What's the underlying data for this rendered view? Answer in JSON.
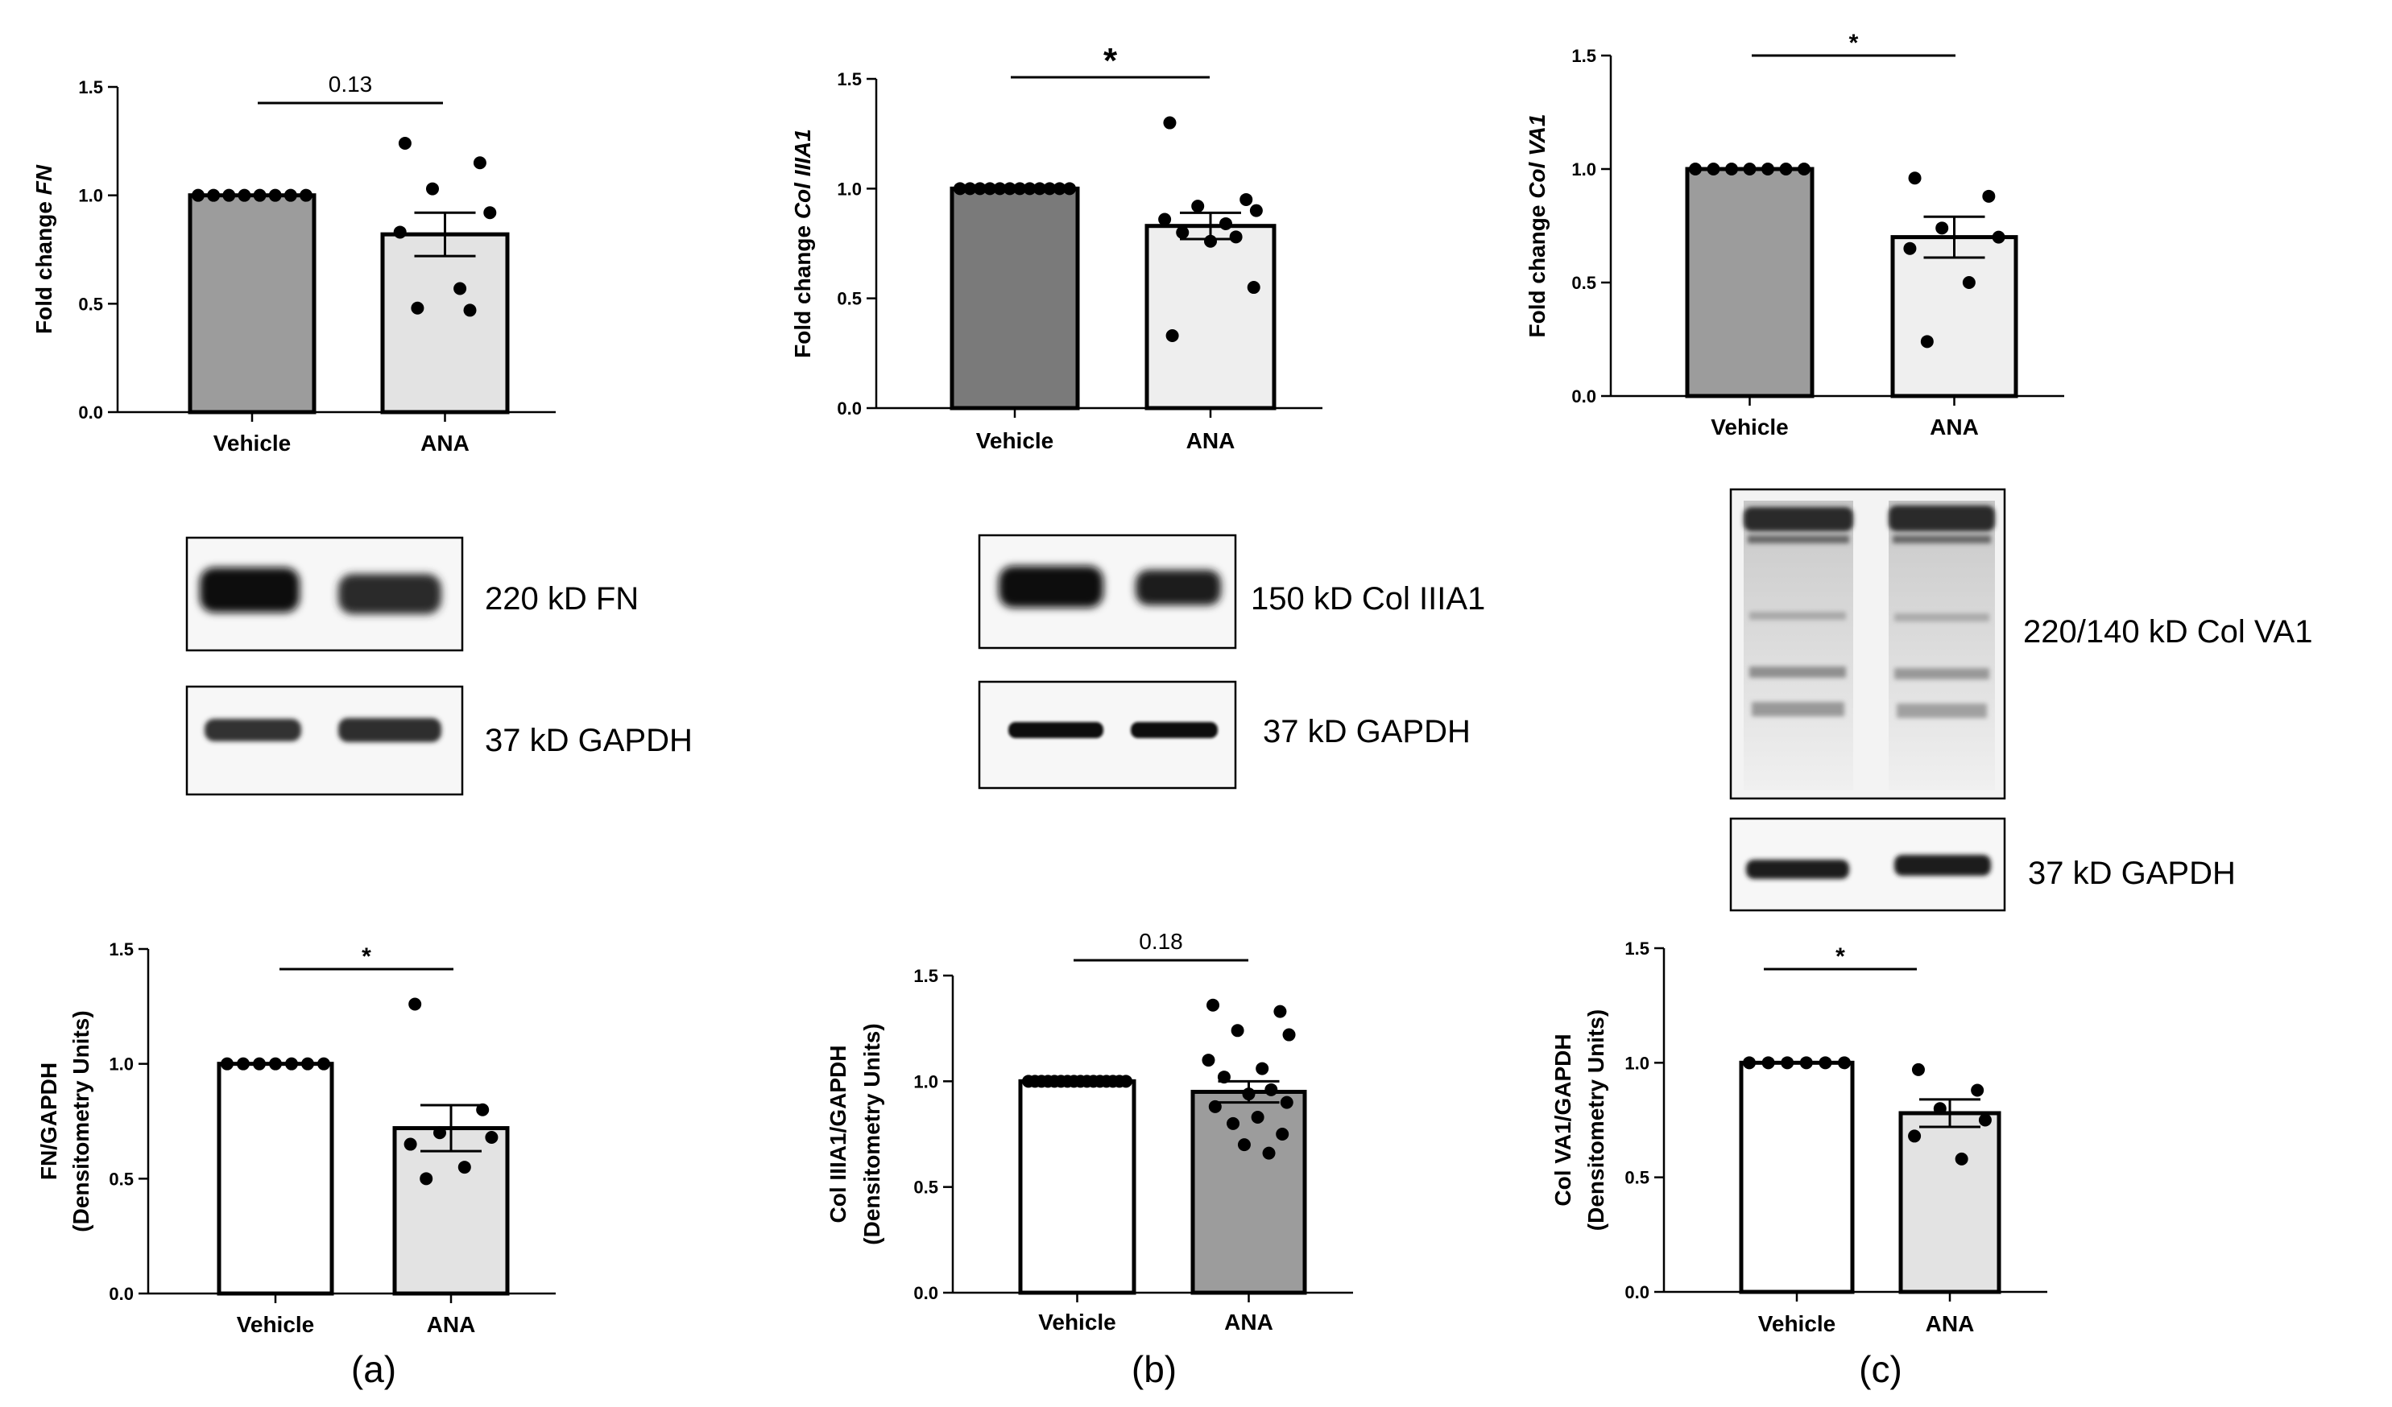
{
  "panel_letters": [
    "(a)",
    "(b)",
    "(c)"
  ],
  "blot_labels": {
    "fn_target": "220 kD FN",
    "fn_gapdh": "37 kD GAPDH",
    "col3_target": "150 kD Col IIIA1",
    "col3_gapdh": "37 kD GAPDH",
    "col5_target": "220/140 kD Col VA1",
    "col5_gapdh": "37 kD GAPDH"
  },
  "colors": {
    "bar_dark": "#7a7a7a",
    "bar_mid": "#9c9c9c",
    "bar_light": "#e3e3e3",
    "bar_white": "#ffffff",
    "ink": "#000000"
  },
  "chart_data": [
    {
      "id": "fn-mrna",
      "type": "bar",
      "categories": [
        "Vehicle",
        "ANA"
      ],
      "ylabel_plain": "Fold change ",
      "ylabel_italic": "FN",
      "ylabel_line2": "",
      "ylim": [
        0,
        1.5
      ],
      "yticks": [
        "0.0",
        "0.5",
        "1.0",
        "1.5"
      ],
      "values": [
        1.0,
        0.82
      ],
      "sem": [
        0,
        0.1
      ],
      "points": [
        [
          1,
          1,
          1,
          1,
          1,
          1,
          1,
          1
        ],
        [
          1.24,
          1.15,
          1.03,
          0.92,
          0.83,
          0.57,
          0.48,
          0.47
        ]
      ],
      "significance": "0.13",
      "bar_colors": [
        "#9c9c9c",
        "#e3e3e3"
      ]
    },
    {
      "id": "col3-mrna",
      "type": "bar",
      "categories": [
        "Vehicle",
        "ANA"
      ],
      "ylabel_plain": "Fold change ",
      "ylabel_italic": "Col IIIA1",
      "ylabel_line2": "",
      "ylim": [
        0,
        1.5
      ],
      "yticks": [
        "0.0",
        "0.5",
        "1.0",
        "1.5"
      ],
      "values": [
        1.0,
        0.83
      ],
      "sem": [
        0,
        0.06
      ],
      "points": [
        [
          1,
          1,
          1,
          1,
          1,
          1,
          1,
          1,
          1,
          1,
          1,
          1
        ],
        [
          1.3,
          0.95,
          0.92,
          0.9,
          0.86,
          0.84,
          0.8,
          0.78,
          0.76,
          0.55,
          0.33
        ]
      ],
      "significance": "*",
      "bar_colors": [
        "#7a7a7a",
        "#eeeeee"
      ]
    },
    {
      "id": "col5-mrna",
      "type": "bar",
      "categories": [
        "Vehicle",
        "ANA"
      ],
      "ylabel_plain": "Fold change ",
      "ylabel_italic": "Col VA1",
      "ylabel_line2": "",
      "ylim": [
        0,
        1.5
      ],
      "yticks": [
        "0.0",
        "0.5",
        "1.0",
        "1.5"
      ],
      "values": [
        1.0,
        0.7
      ],
      "sem": [
        0,
        0.09
      ],
      "points": [
        [
          1,
          1,
          1,
          1,
          1,
          1,
          1
        ],
        [
          0.96,
          0.88,
          0.74,
          0.7,
          0.65,
          0.5,
          0.24
        ]
      ],
      "significance": "*",
      "bar_colors": [
        "#9c9c9c",
        "#efefef"
      ]
    },
    {
      "id": "fn-protein",
      "type": "bar",
      "categories": [
        "Vehicle",
        "ANA"
      ],
      "ylabel_plain": "FN/GAPDH",
      "ylabel_italic": "",
      "ylabel_line2": "(Densitometry Units)",
      "ylim": [
        0,
        1.5
      ],
      "yticks": [
        "0.0",
        "0.5",
        "1.0",
        "1.5"
      ],
      "values": [
        1.0,
        0.72
      ],
      "sem": [
        0,
        0.1
      ],
      "points": [
        [
          1,
          1,
          1,
          1,
          1,
          1,
          1
        ],
        [
          1.26,
          0.8,
          0.7,
          0.68,
          0.65,
          0.55,
          0.5
        ]
      ],
      "significance": "*",
      "bar_colors": [
        "#ffffff",
        "#e3e3e3"
      ]
    },
    {
      "id": "col3-protein",
      "type": "bar",
      "categories": [
        "Vehicle",
        "ANA"
      ],
      "ylabel_plain": "Col IIIA1/GAPDH",
      "ylabel_italic": "",
      "ylabel_line2": "(Densitometry Units)",
      "ylim": [
        0,
        1.5
      ],
      "yticks": [
        "0.0",
        "0.5",
        "1.0",
        "1.5"
      ],
      "values": [
        1.0,
        0.95
      ],
      "sem": [
        0,
        0.05
      ],
      "points": [
        [
          1,
          1,
          1,
          1,
          1,
          1,
          1,
          1,
          1,
          1,
          1,
          1,
          1,
          1,
          1,
          1
        ],
        [
          1.36,
          1.33,
          1.24,
          1.22,
          1.1,
          1.06,
          1.02,
          0.96,
          0.94,
          0.9,
          0.88,
          0.83,
          0.8,
          0.75,
          0.7,
          0.66
        ]
      ],
      "significance": "0.18",
      "bar_colors": [
        "#ffffff",
        "#9c9c9c"
      ]
    },
    {
      "id": "col5-protein",
      "type": "bar",
      "categories": [
        "Vehicle",
        "ANA"
      ],
      "ylabel_plain": "Col VA1/GAPDH",
      "ylabel_italic": "",
      "ylabel_line2": "(Densitometry Units)",
      "ylim": [
        0,
        1.5
      ],
      "yticks": [
        "0.0",
        "0.5",
        "1.0",
        "1.5"
      ],
      "values": [
        1.0,
        0.78
      ],
      "sem": [
        0,
        0.06
      ],
      "points": [
        [
          1,
          1,
          1,
          1,
          1,
          1
        ],
        [
          0.97,
          0.88,
          0.8,
          0.75,
          0.68,
          0.58
        ]
      ],
      "significance": "*",
      "bar_colors": [
        "#ffffff",
        "#e3e3e3"
      ]
    }
  ]
}
